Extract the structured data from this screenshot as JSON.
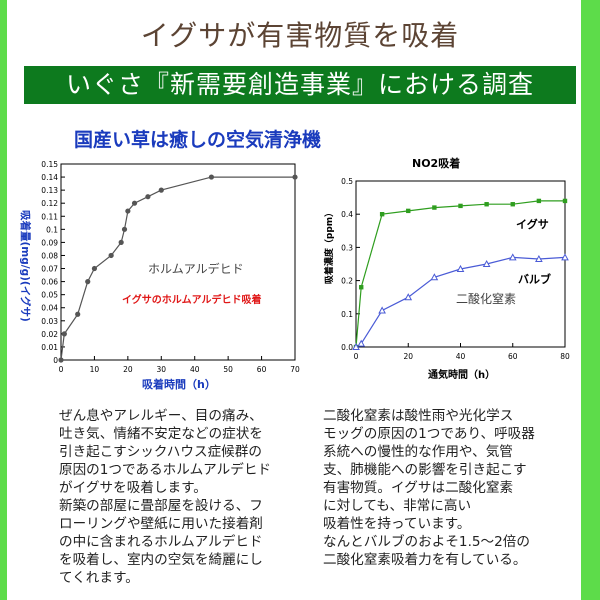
{
  "header": {
    "title": "イグサが有害物質を吸着",
    "banner": "いぐさ『新需要創造事業』における調査",
    "subtitle": "国産い草は癒しの空気清浄機"
  },
  "colors": {
    "frame": "#5ddc4a",
    "banner": "#0d7a1e",
    "subtitle": "#1a3bbd",
    "igusa_series": "#2f9e1f",
    "bulb_series": "#4a5bd6"
  },
  "chart_data": [
    {
      "type": "line",
      "title": "",
      "xlabel": "吸着時間（h）",
      "ylabel": "吸着量(mg/g)(イグサ)",
      "xlim": [
        0,
        70
      ],
      "ylim": [
        0,
        0.15
      ],
      "xticks": [
        "0",
        "10",
        "20",
        "30",
        "40",
        "50",
        "60",
        "70"
      ],
      "yticks": [
        "0",
        "0.01",
        "0.02",
        "0.03",
        "0.04",
        "0.05",
        "0.06",
        "0.07",
        "0.08",
        "0.09",
        "0.1",
        "0.11",
        "0.12",
        "0.13",
        "0.14",
        "0.15"
      ],
      "annotations": [
        "ホルムアルデヒド",
        "イグサのホルムアルデヒド吸着"
      ],
      "series": [
        {
          "x": [
            0,
            1,
            5,
            8,
            10,
            15,
            18,
            19,
            20,
            22,
            26,
            30,
            45,
            70
          ],
          "y": [
            0.0,
            0.02,
            0.035,
            0.06,
            0.07,
            0.08,
            0.09,
            0.1,
            0.114,
            0.12,
            0.125,
            0.13,
            0.14,
            0.14
          ]
        }
      ]
    },
    {
      "type": "line",
      "title": "NO2吸着",
      "xlabel": "通気時間（h）",
      "ylabel": "吸着濃度（ppm）",
      "xlim": [
        0,
        80
      ],
      "ylim": [
        0,
        0.5
      ],
      "xticks": [
        "0",
        "20",
        "40",
        "60",
        "80"
      ],
      "yticks": [
        "0.0",
        "0.1",
        "0.2",
        "0.3",
        "0.4",
        "0.5"
      ],
      "annotations": [
        "二酸化窒素"
      ],
      "series": [
        {
          "name": "イグサ",
          "x": [
            0,
            2,
            10,
            20,
            30,
            40,
            50,
            60,
            70,
            80
          ],
          "y": [
            0.0,
            0.18,
            0.4,
            0.41,
            0.42,
            0.425,
            0.43,
            0.43,
            0.44,
            0.44
          ]
        },
        {
          "name": "バルブ",
          "x": [
            0,
            2,
            10,
            20,
            30,
            40,
            50,
            60,
            70,
            80
          ],
          "y": [
            0.0,
            0.01,
            0.11,
            0.15,
            0.21,
            0.235,
            0.25,
            0.27,
            0.265,
            0.27
          ]
        }
      ]
    }
  ],
  "notes": {
    "left": "ぜん息やアレルギー、目の痛み、\n吐き気、情緒不安定などの症状を\n引き起こすシックハウス症候群の\n原因の1つであるホルムアルデヒド\nがイグサを吸着します。\n新築の部屋に畳部屋を設ける、フ\nローリングや壁紙に用いた接着剤\nの中に含まれるホルムアルデヒド\nを吸着し、室内の空気を綺麗にし\nてくれます。",
    "right": "二酸化窒素は酸性雨や光化学ス\nモッグの原因の1つであり、呼吸器\n系統への慢性的な作用や、気管\n支、肺機能への影響を引き起こす\n有害物質。イグサは二酸化窒素\nに対しても、非常に高い\n吸着性を持っています。\nなんとバルブのおよそ1.5～2倍の\n二酸化窒素吸着力を有している。"
  }
}
